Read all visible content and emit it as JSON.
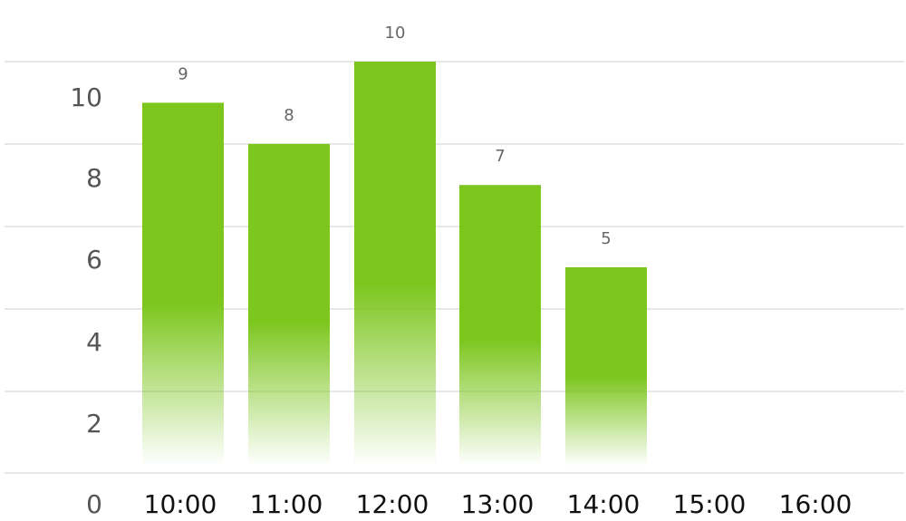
{
  "chart_data": {
    "type": "bar",
    "categories": [
      "10:00",
      "11:00",
      "12:00",
      "13:00",
      "14:00",
      "15:00",
      "16:00"
    ],
    "values": [
      9,
      8,
      10,
      7,
      5,
      null,
      null
    ],
    "data_labels": [
      "9",
      "8",
      "10",
      "7",
      "5",
      "",
      ""
    ],
    "y_ticks": [
      0,
      2,
      4,
      6,
      8,
      10
    ],
    "y_tick_labels": [
      "0",
      "2",
      "4",
      "6",
      "8",
      "10"
    ],
    "xlabel": "",
    "ylabel": "",
    "grid": true,
    "legend": "none",
    "colors": {
      "bar": "#7cc61e",
      "grid": "#cfcfcf",
      "data_label": "#666666",
      "x_tick": "#111111",
      "y_tick": "#555555"
    }
  }
}
